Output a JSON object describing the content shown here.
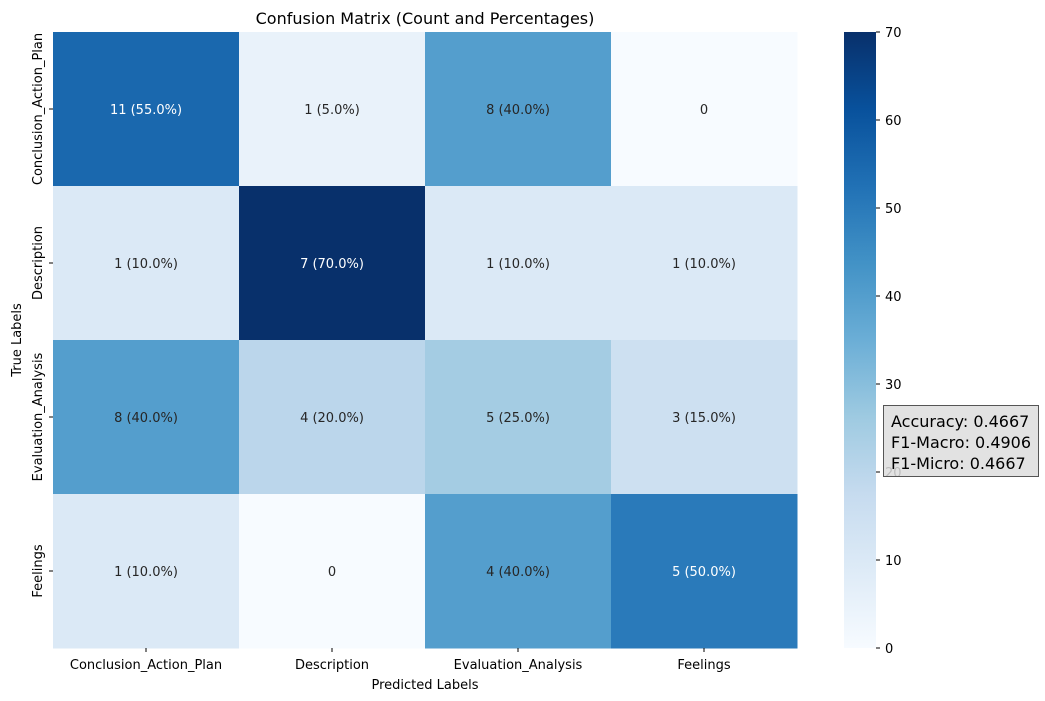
{
  "chart_data": {
    "type": "heatmap",
    "title": "Confusion Matrix (Count and Percentages)",
    "xlabel": "Predicted Labels",
    "ylabel": "True Labels",
    "x_categories": [
      "Conclusion_Action_Plan",
      "Description",
      "Evaluation_Analysis",
      "Feelings"
    ],
    "y_categories": [
      "Conclusion_Action_Plan",
      "Description",
      "Evaluation_Analysis",
      "Feelings"
    ],
    "color_values": [
      [
        55,
        5,
        40,
        0
      ],
      [
        10,
        70,
        10,
        10
      ],
      [
        40,
        20,
        25,
        15
      ],
      [
        10,
        0,
        40,
        50
      ]
    ],
    "cell_labels": [
      [
        "11 (55.0%)",
        "1 (5.0%)",
        "8 (40.0%)",
        "0"
      ],
      [
        "1 (10.0%)",
        "7 (70.0%)",
        "1 (10.0%)",
        "1 (10.0%)"
      ],
      [
        "8 (40.0%)",
        "4 (20.0%)",
        "5 (25.0%)",
        "3 (15.0%)"
      ],
      [
        "1 (10.0%)",
        "0",
        "4 (40.0%)",
        "5 (50.0%)"
      ]
    ],
    "colorbar": {
      "range": [
        0,
        70
      ],
      "ticks": [
        0,
        10,
        20,
        30,
        40,
        50,
        60,
        70
      ],
      "colormap": "Blues"
    },
    "metrics": [
      "Accuracy: 0.4667",
      "F1-Macro: 0.4906",
      "F1-Micro: 0.4667"
    ]
  }
}
